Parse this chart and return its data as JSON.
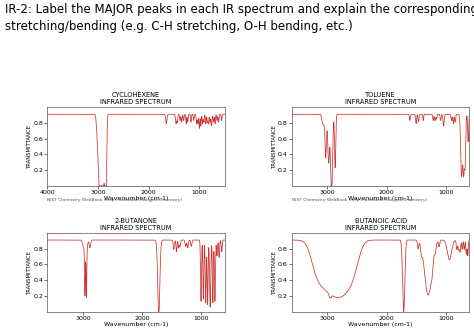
{
  "title_line1": "IR-2: Label the MAJOR peaks in each IR spectrum and explain the corresponding",
  "title_line2": "stretching/bending (e.g. C-H stretching, O-H bending, etc.)",
  "title_fontsize": 8.5,
  "spectra": [
    {
      "name": "CYCLOHEXENE",
      "subtitle": "INFRARED SPECTRUM",
      "xlim": [
        4000,
        500
      ],
      "ylim": [
        0.0,
        1.0
      ],
      "xticks": [
        4000,
        3000,
        2000,
        1000
      ],
      "yticks": [
        0.2,
        0.4,
        0.6,
        0.8
      ],
      "nist_label": "NIST Chemistry WebBook (http://webbook.nist.gov/chemistry)"
    },
    {
      "name": "TOLUENE",
      "subtitle": "INFRARED SPECTRUM",
      "xlim": [
        3600,
        600
      ],
      "ylim": [
        0.0,
        1.0
      ],
      "xticks": [
        3000,
        2000,
        1000
      ],
      "yticks": [
        0.2,
        0.4,
        0.6,
        0.8
      ],
      "nist_label": "NIST Chemistry WebBook (http://webbook.nist.gov/chemistry)"
    },
    {
      "name": "2-BUTANONE",
      "subtitle": "INFRARED SPECTRUM",
      "xlim": [
        3600,
        600
      ],
      "ylim": [
        0.0,
        1.0
      ],
      "xticks": [
        3000,
        2000,
        1000
      ],
      "yticks": [
        0.2,
        0.4,
        0.6,
        0.8
      ],
      "nist_label": null
    },
    {
      "name": "BUTANOIC ACID",
      "subtitle": "INFRARED SPECTRUM",
      "xlim": [
        3600,
        600
      ],
      "ylim": [
        0.0,
        1.0
      ],
      "xticks": [
        3000,
        2000,
        1000
      ],
      "yticks": [
        0.2,
        0.4,
        0.6,
        0.8
      ],
      "nist_label": null
    }
  ],
  "line_color": "#cc3333",
  "bg_color": "#ffffff",
  "axis_color": "#555555",
  "xlabel": "Wavenumber (cm-1)",
  "ylabel": "TRANSMITTANCE"
}
